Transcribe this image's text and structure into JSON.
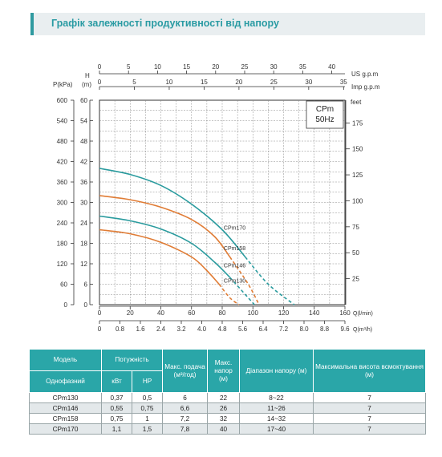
{
  "page": {
    "title": "Графік залежності продуктивності від напору"
  },
  "chart_data": {
    "type": "line",
    "model_label": "CPm",
    "freq_label": "50Hz",
    "left_axes": {
      "pressure_title": "P(kPa)",
      "pressure_ticks": [
        "0",
        "60",
        "120",
        "180",
        "240",
        "300",
        "360",
        "420",
        "480",
        "540",
        "600"
      ],
      "head_title_top": "H",
      "head_title_unit": "(m)",
      "head_ticks": [
        "0",
        "6",
        "12",
        "18",
        "24",
        "30",
        "36",
        "42",
        "48",
        "54",
        "60"
      ],
      "ylim": [
        0,
        60
      ]
    },
    "right_axis": {
      "title": "feet",
      "ticks": [
        "25",
        "50",
        "75",
        "100",
        "125",
        "150",
        "175"
      ],
      "values": [
        25,
        50,
        75,
        100,
        125,
        150,
        175
      ]
    },
    "top_axes": {
      "us": {
        "label": "US  g.p.m",
        "ticks": [
          "0",
          "5",
          "10",
          "15",
          "20",
          "25",
          "30",
          "35",
          "40"
        ]
      },
      "imp": {
        "label": "Imp g.p.m",
        "ticks": [
          "0",
          "5",
          "10",
          "15",
          "20",
          "25",
          "30",
          "35"
        ]
      }
    },
    "bottom_axes": {
      "lmin": {
        "label": "Q(l/min)",
        "ticks": [
          "0",
          "20",
          "40",
          "60",
          "80",
          "100",
          "120",
          "140",
          "160"
        ]
      },
      "m3h": {
        "label": "Q(m³/h)",
        "ticks": [
          "0",
          "0.8",
          "1.6",
          "2.4",
          "3.2",
          "4.0",
          "4.8",
          "5.6",
          "6.4",
          "7.2",
          "8.0",
          "8.8",
          "9.6"
        ]
      }
    },
    "xlim": [
      0,
      160
    ],
    "series": [
      {
        "name": "CPm170",
        "color": "#2a9b9e",
        "solid": [
          [
            0,
            40
          ],
          [
            20,
            38.2
          ],
          [
            40,
            35
          ],
          [
            60,
            29.5
          ],
          [
            80,
            22
          ],
          [
            95,
            14
          ]
        ],
        "dashed": [
          [
            95,
            14
          ],
          [
            110,
            6
          ],
          [
            127,
            0
          ]
        ]
      },
      {
        "name": "CPm158",
        "color": "#e07c35",
        "solid": [
          [
            0,
            32
          ],
          [
            20,
            30.8
          ],
          [
            40,
            28.6
          ],
          [
            60,
            25
          ],
          [
            75,
            20
          ],
          [
            85,
            14
          ]
        ],
        "dashed": [
          [
            85,
            14
          ],
          [
            97,
            6
          ],
          [
            104,
            0
          ]
        ]
      },
      {
        "name": "CPm146",
        "color": "#2a9b9e",
        "solid": [
          [
            0,
            26
          ],
          [
            20,
            24.6
          ],
          [
            40,
            22.2
          ],
          [
            60,
            18
          ],
          [
            75,
            12.5
          ],
          [
            85,
            8
          ]
        ],
        "dashed": [
          [
            85,
            8
          ],
          [
            95,
            3
          ],
          [
            101,
            0
          ]
        ]
      },
      {
        "name": "CPm130",
        "color": "#e07c35",
        "solid": [
          [
            0,
            22
          ],
          [
            20,
            20.8
          ],
          [
            40,
            18.3
          ],
          [
            60,
            14
          ],
          [
            70,
            10
          ],
          [
            78,
            6
          ]
        ],
        "dashed": [
          [
            78,
            6
          ],
          [
            85,
            2
          ],
          [
            91,
            0
          ]
        ]
      }
    ]
  },
  "table": {
    "headers": {
      "model": "Модель",
      "power": "Потужність",
      "max_flow": "Макс. подача (м³/год)",
      "max_head": "Макс. напор (м)",
      "head_range": "Діапазон напору (м)",
      "suction": "Максимальна висота всмоктування (м)",
      "phase": "Однофазний",
      "kw": "кВт",
      "hp": "HP"
    },
    "rows": [
      {
        "model": "CPm130",
        "kw": "0,37",
        "hp": "0,5",
        "flow": "6",
        "head": "22",
        "range": "8~22",
        "suction": "7"
      },
      {
        "model": "CPm146",
        "kw": "0,55",
        "hp": "0,75",
        "flow": "6,6",
        "head": "26",
        "range": "11~26",
        "suction": "7"
      },
      {
        "model": "CPm158",
        "kw": "0,75",
        "hp": "1",
        "flow": "7,2",
        "head": "32",
        "range": "14~32",
        "suction": "7"
      },
      {
        "model": "CPm170",
        "kw": "1,1",
        "hp": "1,5",
        "flow": "7,8",
        "head": "40",
        "range": "17~40",
        "suction": "7"
      }
    ]
  }
}
